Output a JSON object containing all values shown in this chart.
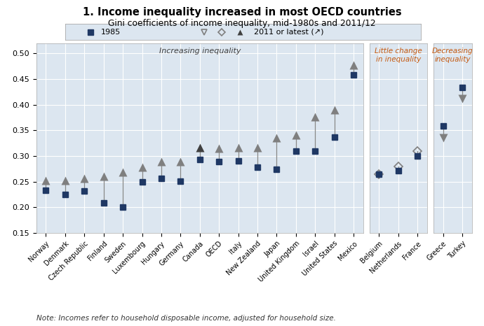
{
  "title": "1. Income inequality increased in most OECD countries",
  "subtitle": "Gini coefficients of income inequality, mid-1980s and 2011/12",
  "note": "Note: Incomes refer to household disposable income, adjusted for household size.",
  "ylim": [
    0.15,
    0.52
  ],
  "yticks": [
    0.15,
    0.2,
    0.25,
    0.3,
    0.35,
    0.4,
    0.45,
    0.5
  ],
  "bg_color": "#dce6f0",
  "plot_bg": "#dce6f0",
  "group1_label": "Increasing inequality",
  "group2_label": "Little change\nin inequality",
  "group3_label": "Decreasing\ninequality",
  "countries_g1": [
    "Norway",
    "Denmark",
    "Czech Republic",
    "Finland",
    "Sweden",
    "Luxembourg",
    "Hungary",
    "Germany",
    "Canada",
    "OECD",
    "Italy",
    "New Zealand",
    "Japan",
    "United Kingdom",
    "Israel",
    "United States",
    "Mexico"
  ],
  "val1985_g1": [
    0.234,
    0.225,
    0.232,
    0.209,
    0.2,
    0.249,
    0.256,
    0.251,
    0.293,
    0.289,
    0.29,
    0.278,
    0.274,
    0.309,
    0.31,
    0.337,
    0.458
  ],
  "val2011_g1": [
    0.252,
    0.252,
    0.256,
    0.26,
    0.269,
    0.278,
    0.289,
    0.289,
    0.316,
    0.315,
    0.317,
    0.317,
    0.336,
    0.341,
    0.376,
    0.39,
    0.477
  ],
  "marker2011_g1": [
    "up",
    "up",
    "up",
    "up",
    "up",
    "up",
    "up",
    "up",
    "filled",
    "up",
    "up",
    "up",
    "up",
    "up",
    "up",
    "up",
    "up"
  ],
  "countries_g2": [
    "Belgium",
    "Netherlands",
    "France"
  ],
  "val1985_g2": [
    0.264,
    0.272,
    0.3
  ],
  "val2011_g2": [
    0.265,
    0.28,
    0.309
  ],
  "marker2011_g2": [
    "diamond",
    "diamond",
    "diamond"
  ],
  "countries_g3": [
    "Greece",
    "Turkey"
  ],
  "val1985_g3": [
    0.358,
    0.434
  ],
  "val2011_g3": [
    0.336,
    0.412
  ],
  "marker2011_g3": [
    "down",
    "down"
  ],
  "color_1985": "#1f3864",
  "color_2011": "#7f7f7f",
  "color_2011_dark": "#404040",
  "title_color": "#000000",
  "label_color_inc": "#404040",
  "label_color_other": "#c55a11"
}
